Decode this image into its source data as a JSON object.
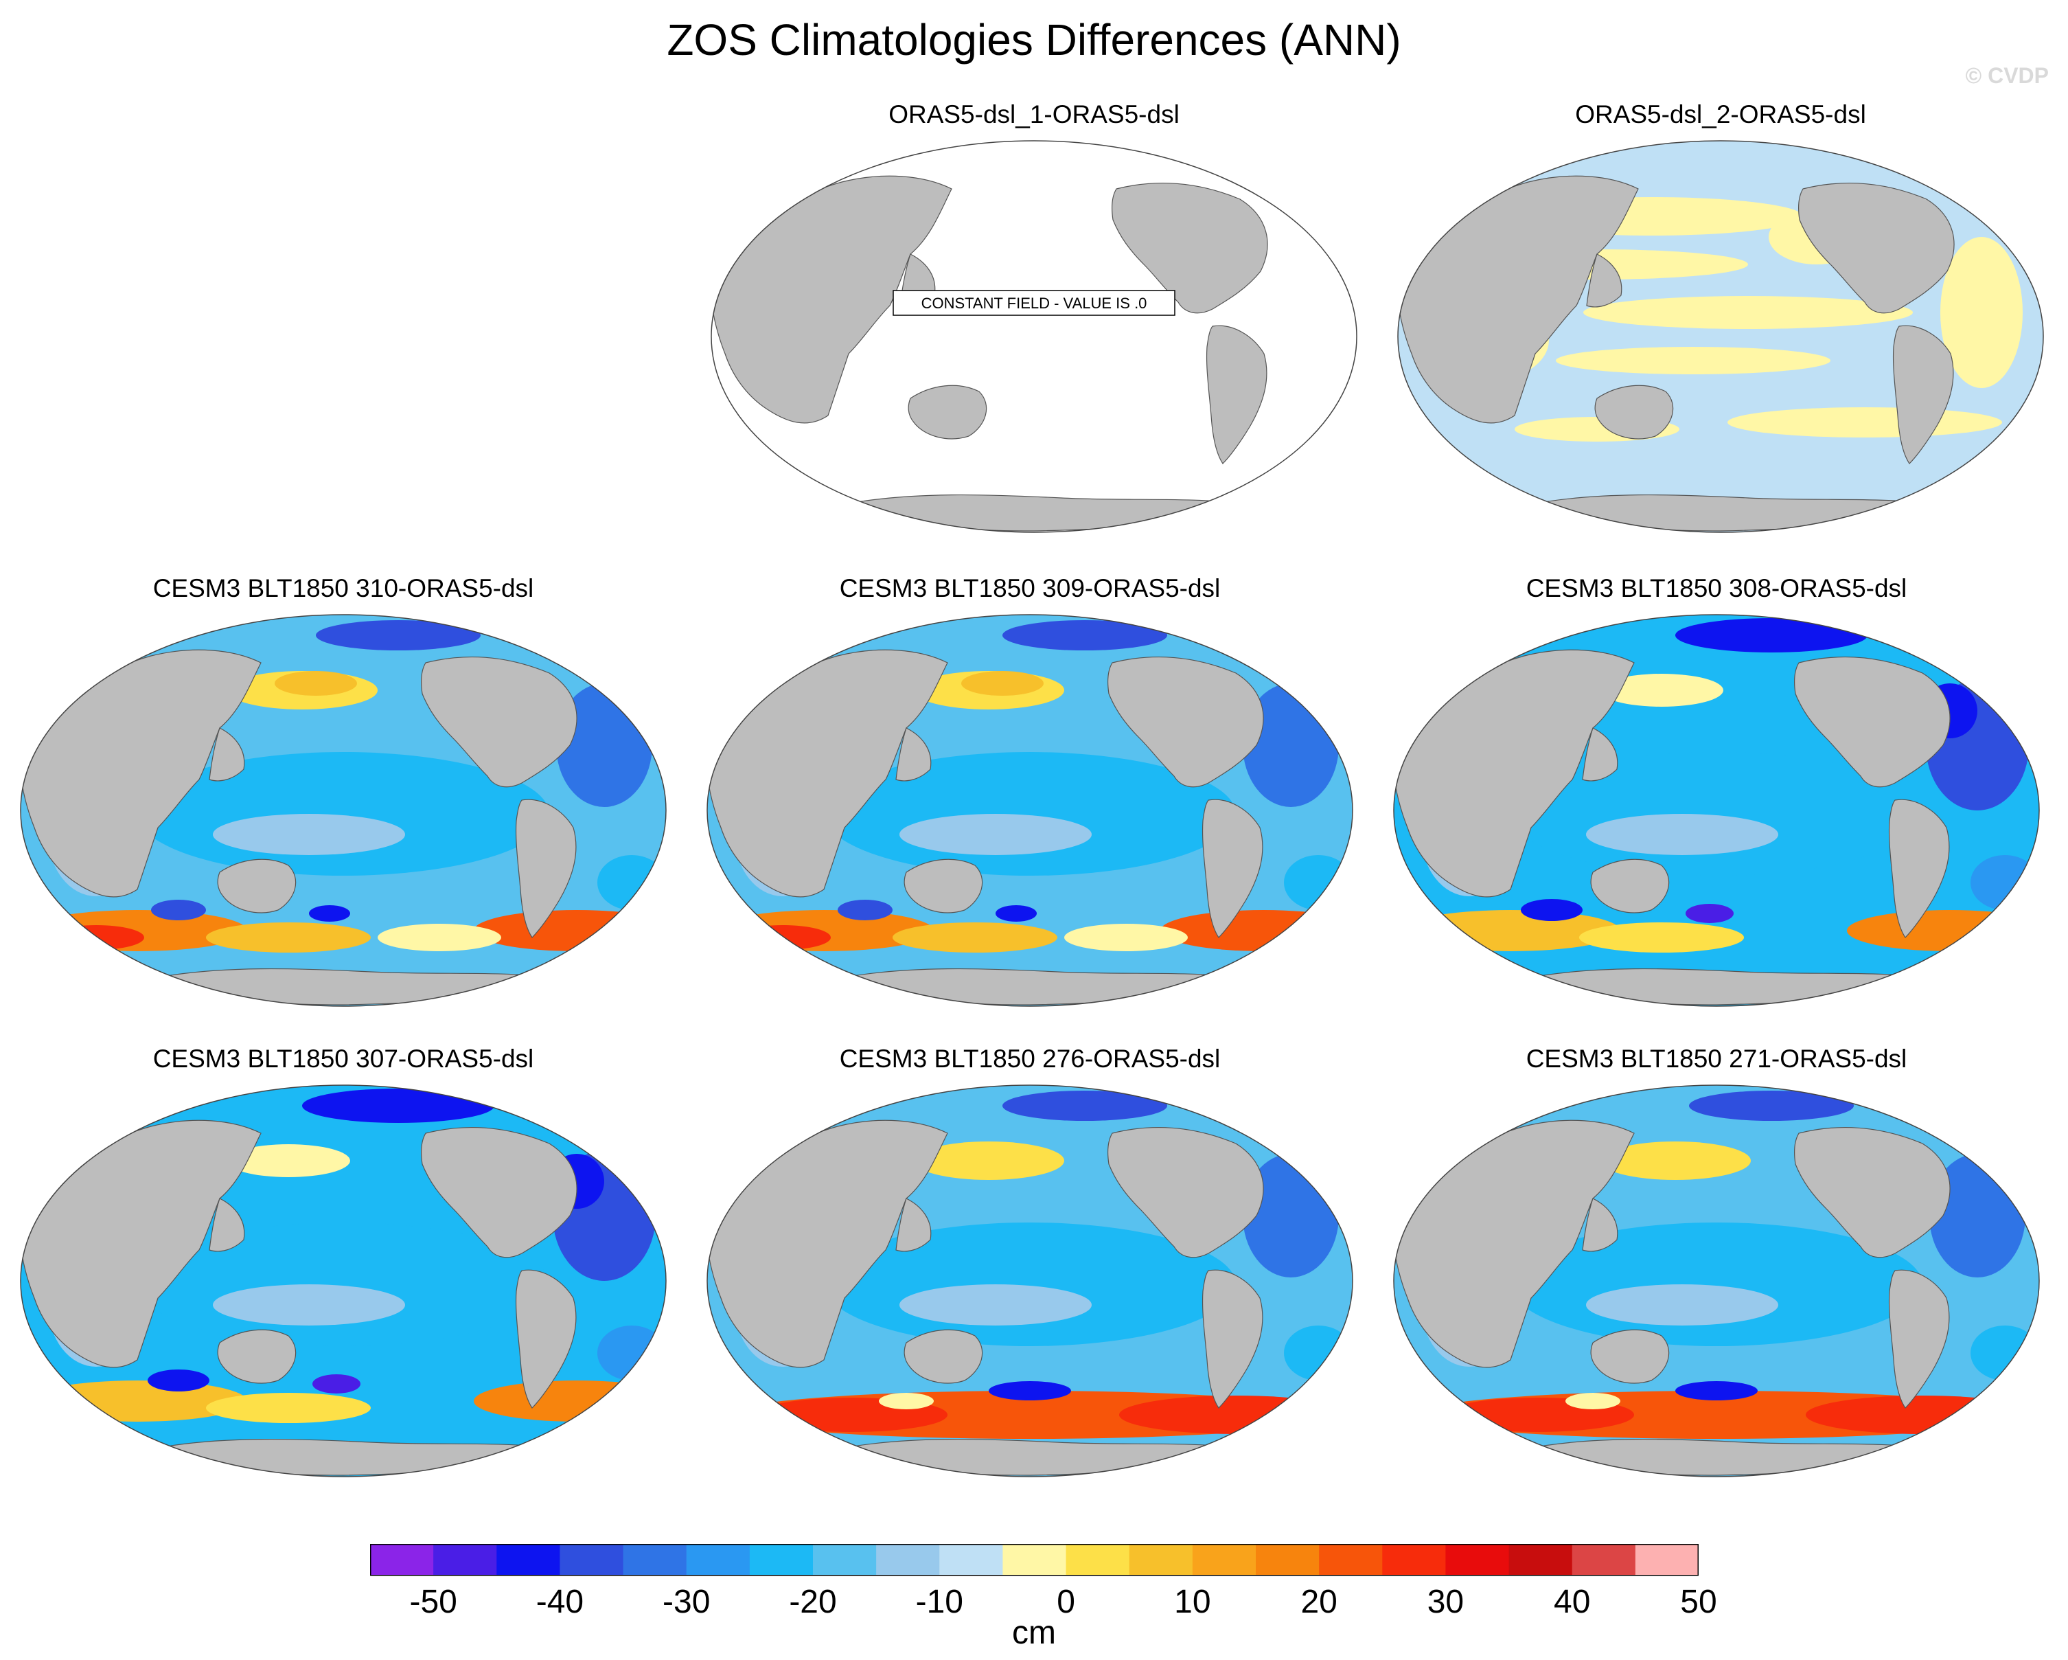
{
  "title": "ZOS Climatologies Differences (ANN)",
  "watermark": "© CVDP",
  "panels": [
    {
      "title": "ORAS5-dsl_1-ORAS5-dsl",
      "pattern": "constant",
      "note": "CONSTANT FIELD - VALUE IS .0"
    },
    {
      "title": "ORAS5-dsl_2-ORAS5-dsl",
      "pattern": "near-zero"
    },
    {
      "title": "CESM3 BLT1850 310-ORAS5-dsl",
      "pattern": "bias"
    },
    {
      "title": "CESM3 BLT1850 309-ORAS5-dsl",
      "pattern": "bias"
    },
    {
      "title": "CESM3 BLT1850 308-ORAS5-dsl",
      "pattern": "bias-strong"
    },
    {
      "title": "CESM3 BLT1850 307-ORAS5-dsl",
      "pattern": "bias-strong"
    },
    {
      "title": "CESM3 BLT1850 276-ORAS5-dsl",
      "pattern": "bias-south"
    },
    {
      "title": "CESM3 BLT1850 271-ORAS5-dsl",
      "pattern": "bias-south"
    }
  ],
  "colorbar": {
    "units": "cm",
    "levels": [
      -50,
      -40,
      -30,
      -20,
      -10,
      0,
      10,
      20,
      30,
      40,
      50
    ],
    "colors": [
      "#8b24e8",
      "#4a1ee6",
      "#0d14f0",
      "#2f4fde",
      "#2f74e6",
      "#2a98f2",
      "#1cb9f5",
      "#58c1ef",
      "#98c9ec",
      "#bfe0f5",
      "#fff7a6",
      "#fde048",
      "#f7c02b",
      "#f9a31b",
      "#f7840d",
      "#f7550a",
      "#f72c0b",
      "#e80c0c",
      "#c80d0d",
      "#dc4545",
      "#fdb1b1"
    ],
    "labels": [
      "-50",
      "-40",
      "-30",
      "-20",
      "-10",
      "0",
      "10",
      "20",
      "30",
      "40",
      "50"
    ]
  },
  "map": {
    "land_color": "#bdbdbd",
    "ocean_blank": "#ffffff"
  }
}
